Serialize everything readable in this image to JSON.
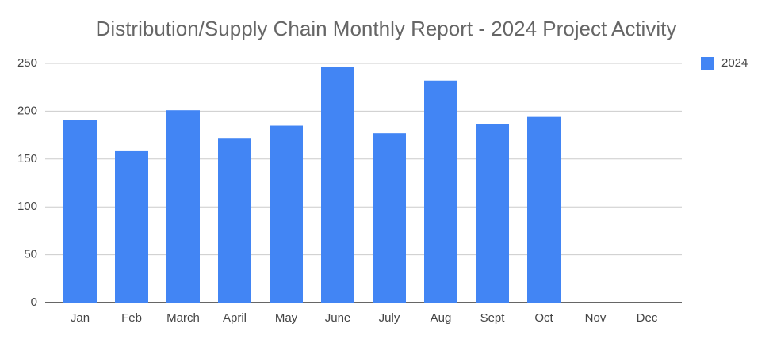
{
  "chart_data": {
    "type": "bar",
    "title": "Distribution/Supply Chain Monthly Report - 2024 Project Activity",
    "categories": [
      "Jan",
      "Feb",
      "March",
      "April",
      "May",
      "June",
      "July",
      "Aug",
      "Sept",
      "Oct",
      "Nov",
      "Dec"
    ],
    "series": [
      {
        "name": "2024",
        "color": "#4285f4",
        "values": [
          191,
          159,
          201,
          172,
          185,
          246,
          177,
          232,
          187,
          194,
          null,
          null
        ]
      }
    ],
    "ylim": [
      0,
      250
    ],
    "yticks": [
      0,
      50,
      100,
      150,
      200,
      250
    ],
    "grid": true,
    "legend": "right"
  }
}
